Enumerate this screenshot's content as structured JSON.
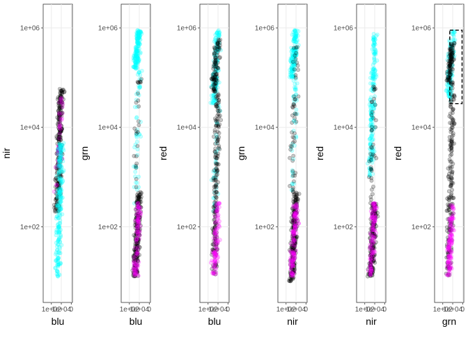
{
  "chart_data": [
    {
      "type": "scatter",
      "xlabel": "blu",
      "ylabel": "nir",
      "y_scale": "log10",
      "ylim": [
        3,
        3000000
      ],
      "y_ticks": [
        "1e+02",
        "1e+04",
        "1e+06"
      ],
      "y_tick_values": [
        100,
        10000,
        1000000
      ],
      "x_ticks": [
        "1e+02",
        "1e+04",
        "0"
      ],
      "grid": true,
      "point_colors": [
        "#ff00ff",
        "#000000",
        "#00ffff"
      ],
      "clouds": [
        {
          "color": "#000000",
          "y_range": [
            200,
            60000
          ],
          "count": 260
        },
        {
          "color": "#ff00ff",
          "y_range": [
            500,
            40000
          ],
          "count": 40
        },
        {
          "color": "#00ffff",
          "y_range": [
            10,
            5000
          ],
          "count": 220
        }
      ]
    },
    {
      "type": "scatter",
      "xlabel": "blu",
      "ylabel": "grn",
      "y_scale": "log10",
      "ylim": [
        3,
        3000000
      ],
      "y_ticks": [
        "1e+02",
        "1e+04",
        "1e+06"
      ],
      "y_tick_values": [
        100,
        10000,
        1000000
      ],
      "x_ticks": [
        "1e+02",
        "1e+04",
        "0"
      ],
      "grid": true,
      "point_colors": [
        "#ff00ff",
        "#000000",
        "#00ffff"
      ],
      "clouds": [
        {
          "color": "#00ffff",
          "y_range": [
            150000,
            900000
          ],
          "count": 160
        },
        {
          "color": "#00ffff",
          "y_range": [
            200,
            150000
          ],
          "count": 50
        },
        {
          "color": "#000000",
          "y_range": [
            10,
            500
          ],
          "count": 220
        },
        {
          "color": "#000000",
          "y_range": [
            500,
            100000
          ],
          "count": 25
        },
        {
          "color": "#ff00ff",
          "y_range": [
            10,
            300
          ],
          "count": 90
        }
      ]
    },
    {
      "type": "scatter",
      "xlabel": "blu",
      "ylabel": "red",
      "y_scale": "log10",
      "ylim": [
        3,
        3000000
      ],
      "y_ticks": [
        "1e+02",
        "1e+04",
        "1e+06"
      ],
      "y_tick_values": [
        100,
        10000,
        1000000
      ],
      "x_ticks": [
        "1e+02",
        "1e+04",
        "0"
      ],
      "grid": true,
      "point_colors": [
        "#ff00ff",
        "#000000",
        "#00ffff"
      ],
      "clouds": [
        {
          "color": "#00ffff",
          "y_range": [
            30000,
            900000
          ],
          "count": 160
        },
        {
          "color": "#00ffff",
          "y_range": [
            200,
            30000
          ],
          "count": 40
        },
        {
          "color": "#000000",
          "y_range": [
            50000,
            600000
          ],
          "count": 90
        },
        {
          "color": "#000000",
          "y_range": [
            10,
            50000
          ],
          "count": 180
        },
        {
          "color": "#ff00ff",
          "y_range": [
            10,
            300
          ],
          "count": 90
        }
      ]
    },
    {
      "type": "scatter",
      "xlabel": "nir",
      "ylabel": "grn",
      "y_scale": "log10",
      "ylim": [
        3,
        3000000
      ],
      "y_ticks": [
        "1e+02",
        "1e+04",
        "1e+06"
      ],
      "y_tick_values": [
        100,
        10000,
        1000000
      ],
      "x_ticks": [
        "1e+02",
        "1e+04",
        "0"
      ],
      "grid": true,
      "point_colors": [
        "#ff00ff",
        "#000000",
        "#00ffff"
      ],
      "clouds": [
        {
          "color": "#00ffff",
          "y_range": [
            100000,
            900000
          ],
          "count": 150
        },
        {
          "color": "#00ffff",
          "y_range": [
            500,
            100000
          ],
          "count": 40
        },
        {
          "color": "#000000",
          "y_range": [
            8,
            500
          ],
          "count": 230
        },
        {
          "color": "#000000",
          "y_range": [
            500,
            500000
          ],
          "count": 50
        },
        {
          "color": "#ff00ff",
          "y_range": [
            10,
            300
          ],
          "count": 110
        }
      ]
    },
    {
      "type": "scatter",
      "xlabel": "nir",
      "ylabel": "red",
      "y_scale": "log10",
      "ylim": [
        3,
        3000000
      ],
      "y_ticks": [
        "1e+02",
        "1e+04",
        "1e+06"
      ],
      "y_tick_values": [
        100,
        10000,
        1000000
      ],
      "x_ticks": [
        "1e+02",
        "1e+04",
        "0"
      ],
      "grid": true,
      "point_colors": [
        "#ff00ff",
        "#000000",
        "#00ffff"
      ],
      "clouds": [
        {
          "color": "#00ffff",
          "y_range": [
            1000,
            900000
          ],
          "count": 200
        },
        {
          "color": "#000000",
          "y_range": [
            10,
            300
          ],
          "count": 210
        },
        {
          "color": "#000000",
          "y_range": [
            300,
            100000
          ],
          "count": 40
        },
        {
          "color": "#ff00ff",
          "y_range": [
            10,
            300
          ],
          "count": 100
        }
      ]
    },
    {
      "type": "scatter",
      "xlabel": "grn",
      "ylabel": "red",
      "y_scale": "log10",
      "ylim": [
        3,
        3000000
      ],
      "y_ticks": [
        "1e+02",
        "1e+04",
        "1e+06"
      ],
      "y_tick_values": [
        100,
        10000,
        1000000
      ],
      "x_ticks": [
        "1e+02",
        "1e+04",
        "0"
      ],
      "grid": true,
      "point_colors": [
        "#ff00ff",
        "#000000",
        "#00ffff"
      ],
      "annotation": {
        "type": "dashed-rect",
        "y_range": [
          30000,
          900000
        ]
      },
      "clouds": [
        {
          "color": "#00ffff",
          "y_range": [
            30000,
            900000
          ],
          "count": 130
        },
        {
          "color": "#000000",
          "y_range": [
            80000,
            500000
          ],
          "count": 90
        },
        {
          "color": "#000000",
          "y_range": [
            10,
            80000
          ],
          "count": 180
        },
        {
          "color": "#ff00ff",
          "y_range": [
            10,
            300
          ],
          "count": 110
        }
      ]
    }
  ]
}
